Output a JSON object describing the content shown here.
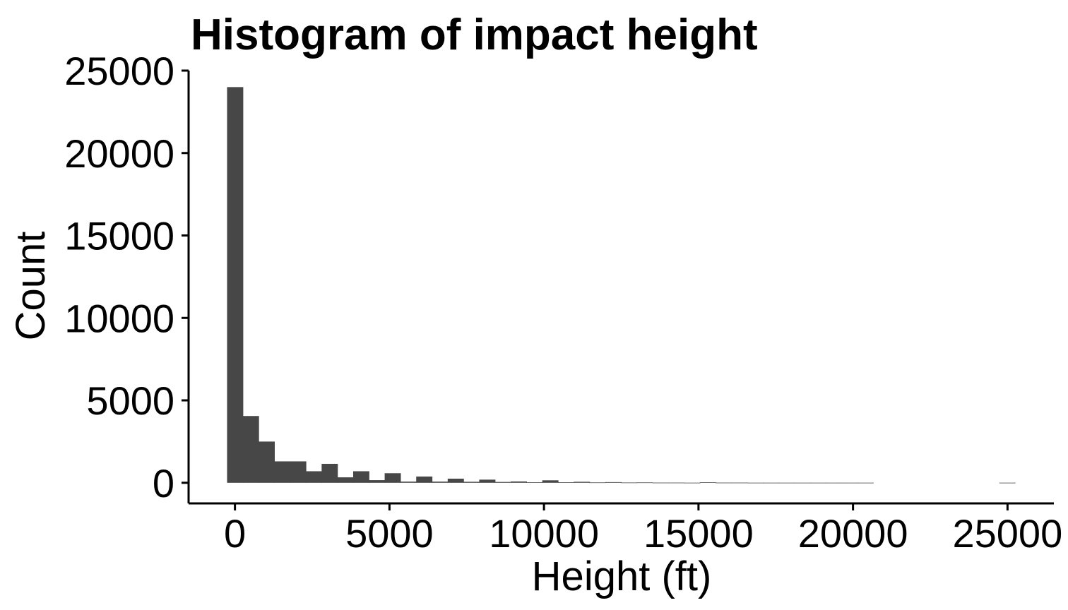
{
  "chart_data": {
    "type": "bar",
    "title": "Histogram of impact height",
    "xlabel": "Height (ft)",
    "ylabel": "Count",
    "bar_color": "#474747",
    "background_color": "#ffffff",
    "axis_color": "#000000",
    "grid": false,
    "legend": "none",
    "xlim": [
      -1500,
      26500
    ],
    "ylim": [
      -1250,
      25000
    ],
    "xticks": [
      0,
      5000,
      10000,
      15000,
      20000,
      25000
    ],
    "xtick_labels": [
      "0",
      "5000",
      "10000",
      "15000",
      "20000",
      "25000"
    ],
    "yticks": [
      0,
      5000,
      10000,
      15000,
      20000,
      25000
    ],
    "ytick_labels": [
      "0",
      "5000",
      "10000",
      "15000",
      "20000",
      "25000"
    ],
    "bin_width": 510,
    "bin_centers": [
      0,
      510,
      1020,
      1530,
      2040,
      2550,
      3060,
      3570,
      4080,
      4590,
      5100,
      5610,
      6120,
      6630,
      7140,
      7650,
      8160,
      8670,
      9180,
      9690,
      10200,
      10710,
      11220,
      11730,
      12240,
      12750,
      13260,
      13770,
      14280,
      14790,
      15300,
      15810,
      16320,
      16830,
      17340,
      17850,
      18360,
      18870,
      19380,
      19890,
      20400,
      20910,
      21420,
      21930,
      22440,
      22950,
      23460,
      23970,
      24480,
      24990
    ],
    "values": [
      24000,
      4050,
      2500,
      1300,
      1300,
      700,
      1150,
      330,
      700,
      160,
      580,
      70,
      380,
      70,
      250,
      60,
      190,
      50,
      80,
      30,
      150,
      30,
      60,
      20,
      40,
      15,
      20,
      10,
      10,
      5,
      30,
      10,
      10,
      5,
      5,
      5,
      5,
      5,
      5,
      5,
      5,
      0,
      0,
      0,
      0,
      0,
      0,
      0,
      0,
      5
    ]
  }
}
